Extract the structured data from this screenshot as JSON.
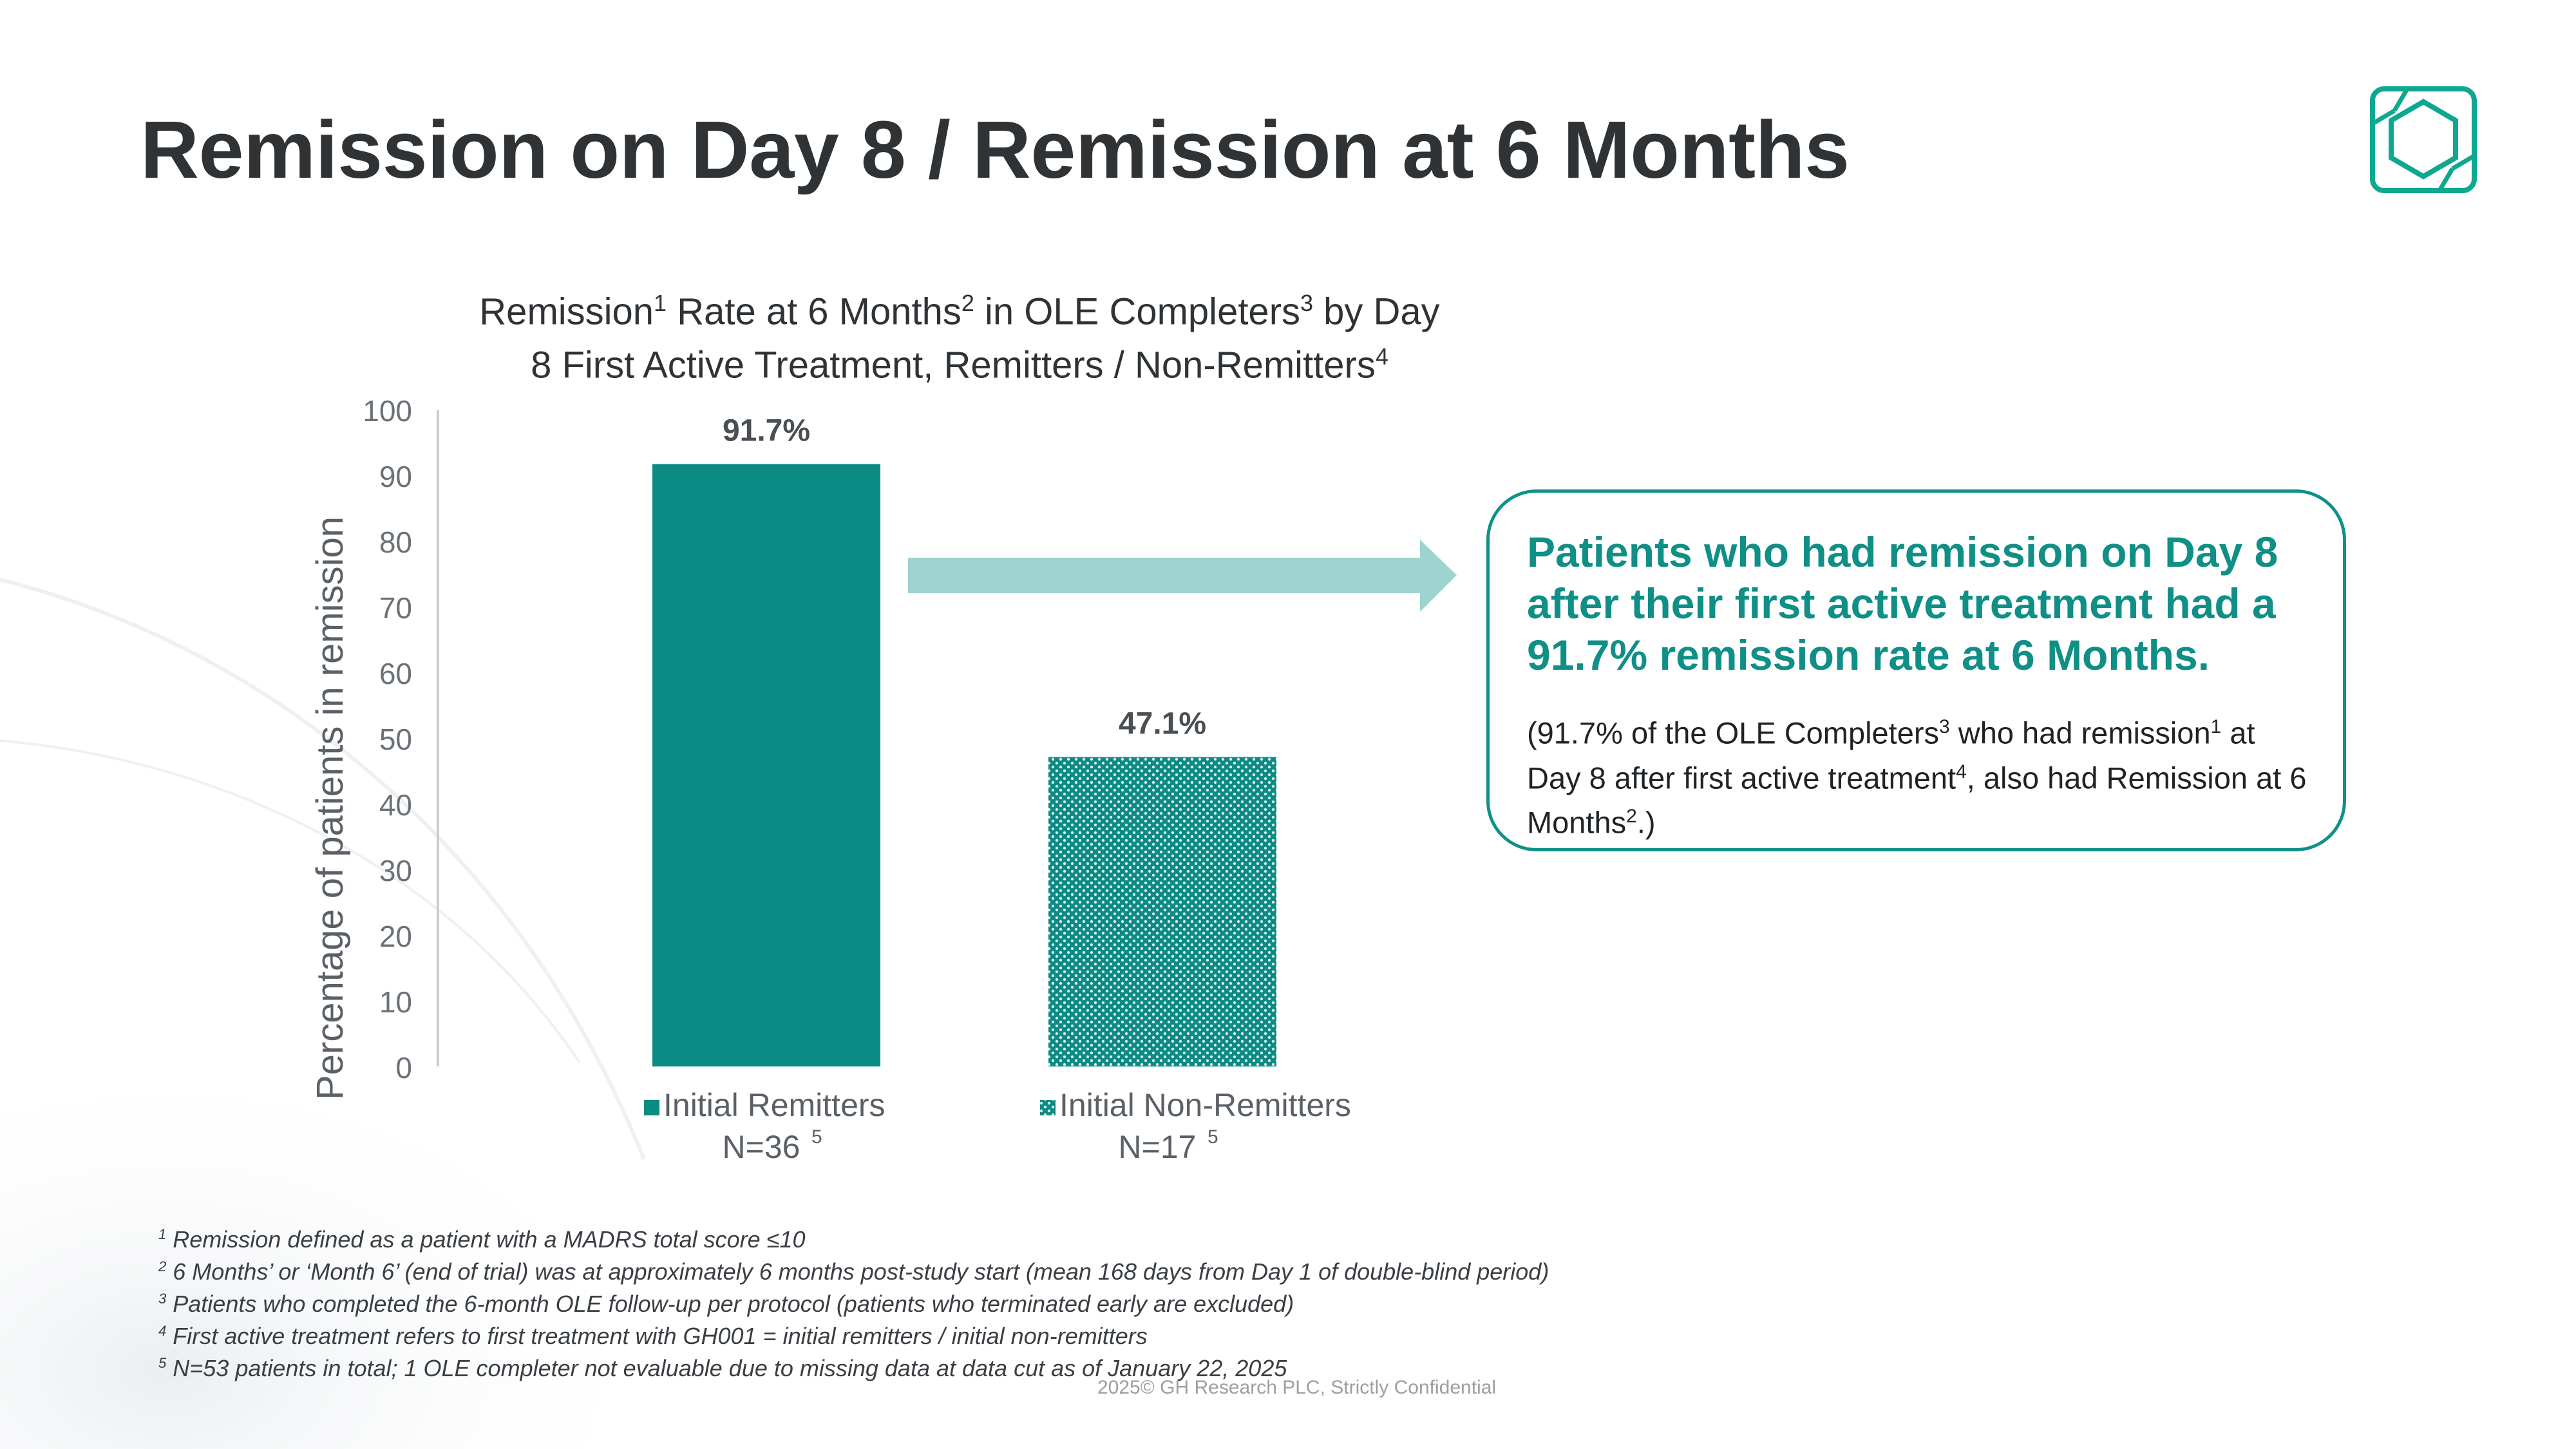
{
  "slide": {
    "title": "Remission on Day 8 / Remission at 6 Months",
    "copyright": "2025© GH Research PLC, Strictly Confidential",
    "colors": {
      "teal": "#0b8b84",
      "arrow": "#9fd3d0",
      "title": "#2f3336"
    }
  },
  "chart_title": {
    "w1": "Remission",
    "s1": "1",
    "w2": " Rate at 6 Months",
    "s2": "2",
    "w3": " in OLE Completers",
    "s3": "3",
    "w4": " by Day",
    "line2": "8 First Active Treatment, Remitters / Non-Remitters",
    "s4": "4"
  },
  "chart_data": {
    "type": "bar",
    "categories": [
      "Initial Remitters",
      "Initial Non-Remitters"
    ],
    "category_n": [
      "N=36",
      "N=17"
    ],
    "category_n_sup": [
      "5",
      "5"
    ],
    "values": [
      91.7,
      47.1
    ],
    "data_labels": [
      "91.7%",
      "47.1%"
    ],
    "ylabel": "Percentage of patients in remission",
    "ylim": [
      0,
      100
    ],
    "yticks": [
      "0",
      "10",
      "20",
      "30",
      "40",
      "50",
      "60",
      "70",
      "80",
      "90",
      "100"
    ],
    "grid": false,
    "series_styles": [
      "solid",
      "dotted"
    ]
  },
  "callout": {
    "headline": "Patients who had remission on Day 8 after their first active treatment had a 91.7% remission rate at 6 Months.",
    "b1": "(91.7% of the OLE Completers",
    "s1": "3",
    "b2": " who had remission",
    "s2": "1",
    "b3": " at Day 8 after first active treatment",
    "s3": "4",
    "b4": ", also had Remission at 6 Months",
    "s4": "2",
    "b5": ".)"
  },
  "footnotes": [
    {
      "num": "1",
      "text": "Remission defined as a patient with a MADRS total score ≤10"
    },
    {
      "num": "2",
      "text": "6 Months’ or ‘Month 6’ (end of trial) was at approximately 6 months post-study start (mean 168 days from Day 1 of double-blind period)"
    },
    {
      "num": "3",
      "text": "Patients who completed the 6-month OLE follow-up per protocol (patients who terminated early are excluded)"
    },
    {
      "num": "4",
      "text": "First active treatment refers to first treatment with GH001 = initial remitters / initial non-remitters"
    },
    {
      "num": "5",
      "text": "N=53 patients in total; 1 OLE completer not evaluable due to missing data at data cut as of January 22, 2025"
    }
  ]
}
